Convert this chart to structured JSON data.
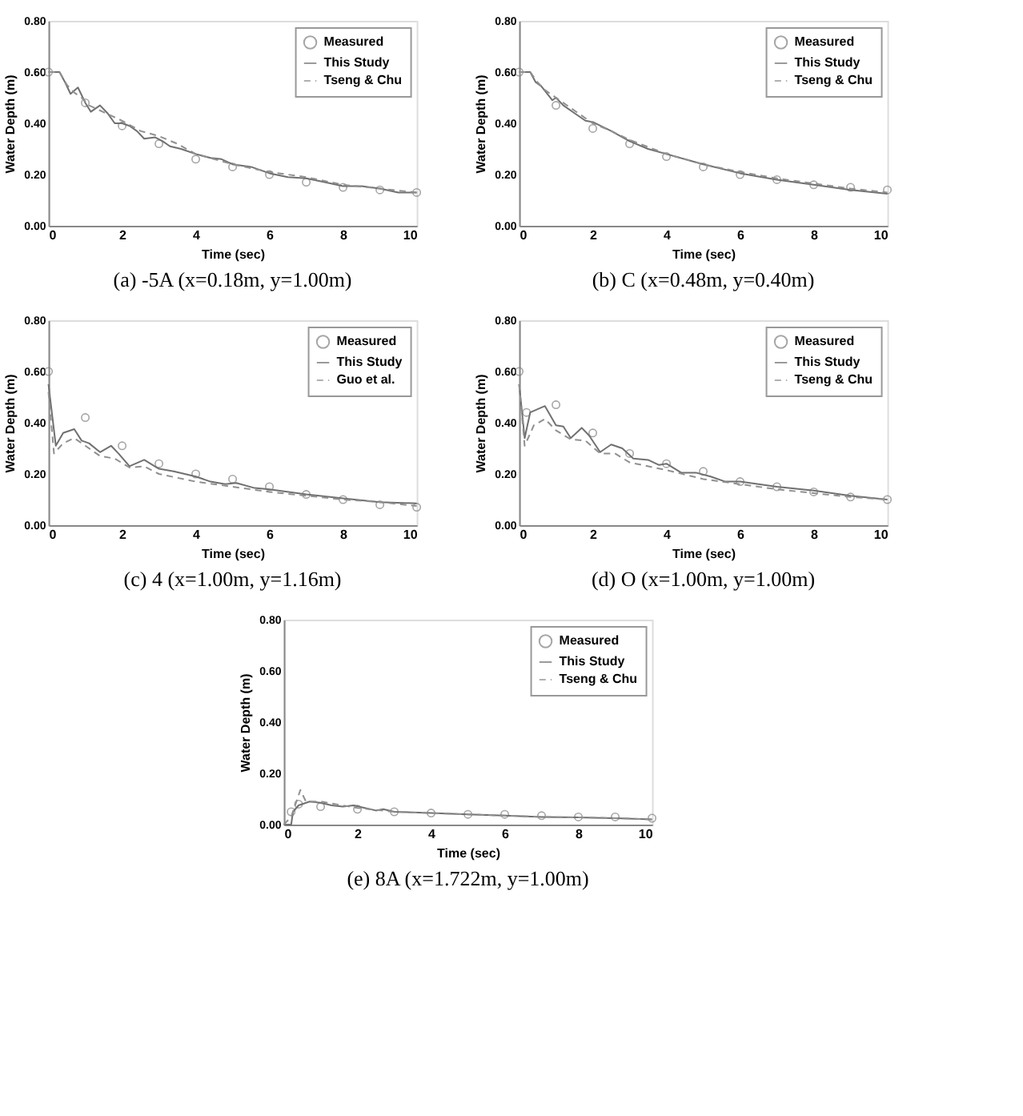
{
  "chart_data": [
    {
      "type": "line",
      "title": "(a)  -5A  (x=0.18m,  y=1.00m)",
      "xlabel": "Time (sec)",
      "ylabel": "Water Depth (m)",
      "xlim": [
        0,
        10
      ],
      "ylim": [
        0,
        0.8
      ],
      "xticks": [
        0,
        2,
        4,
        6,
        8,
        10
      ],
      "yticks": [
        {
          "value": 0,
          "label": "0.00"
        },
        {
          "value": 0.2,
          "label": "0.20"
        },
        {
          "value": 0.4,
          "label": "0.40"
        },
        {
          "value": 0.6,
          "label": "0.60"
        },
        {
          "value": 0.8,
          "label": "0.80"
        }
      ],
      "legend": "top right",
      "series": [
        {
          "name": "Measured",
          "type": "scatter",
          "marker": "circle",
          "color": "#808080",
          "x": [
            0,
            1,
            2,
            3,
            4,
            5,
            6,
            7,
            8,
            9,
            10
          ],
          "values": [
            0.6,
            0.48,
            0.39,
            0.32,
            0.26,
            0.23,
            0.2,
            0.17,
            0.15,
            0.14,
            0.13
          ]
        },
        {
          "name": "This Study",
          "line_style": "solid",
          "color": "#707070",
          "x": [
            0,
            0.3,
            0.45,
            0.6,
            0.8,
            1.0,
            1.15,
            1.4,
            1.6,
            1.8,
            2.0,
            2.2,
            2.4,
            2.6,
            2.9,
            3.1,
            3.3,
            3.6,
            4.0,
            4.4,
            4.7,
            5.0,
            5.5,
            6,
            6.5,
            7,
            7.5,
            8,
            8.5,
            9,
            9.5,
            10
          ],
          "values": [
            0.6,
            0.6,
            0.56,
            0.515,
            0.54,
            0.48,
            0.445,
            0.47,
            0.44,
            0.4,
            0.4,
            0.39,
            0.37,
            0.34,
            0.345,
            0.33,
            0.31,
            0.3,
            0.28,
            0.265,
            0.26,
            0.24,
            0.23,
            0.205,
            0.19,
            0.185,
            0.17,
            0.155,
            0.155,
            0.145,
            0.13,
            0.13
          ]
        },
        {
          "name": "Tseng & Chu",
          "line_style": "dashed",
          "color": "#909090",
          "x": [
            0,
            0.3,
            0.5,
            0.7,
            0.9,
            1.1,
            1.4,
            1.7,
            2.0,
            2.5,
            3,
            3.5,
            4,
            4.5,
            5,
            6,
            7,
            8,
            9,
            10
          ],
          "values": [
            0.6,
            0.6,
            0.55,
            0.52,
            0.5,
            0.47,
            0.45,
            0.43,
            0.41,
            0.37,
            0.35,
            0.32,
            0.28,
            0.26,
            0.24,
            0.21,
            0.19,
            0.16,
            0.145,
            0.13
          ]
        }
      ]
    },
    {
      "type": "line",
      "title": "(b)  C  (x=0.48m,  y=0.40m)",
      "xlabel": "Time (sec)",
      "ylabel": "Water Depth (m)",
      "xlim": [
        0,
        10
      ],
      "ylim": [
        0,
        0.8
      ],
      "xticks": [
        0,
        2,
        4,
        6,
        8,
        10
      ],
      "yticks": [
        {
          "value": 0,
          "label": "0.00"
        },
        {
          "value": 0.2,
          "label": "0.20"
        },
        {
          "value": 0.4,
          "label": "0.40"
        },
        {
          "value": 0.6,
          "label": "0.60"
        },
        {
          "value": 0.8,
          "label": "0.80"
        }
      ],
      "legend": "top right",
      "series": [
        {
          "name": "Measured",
          "type": "scatter",
          "marker": "circle",
          "color": "#808080",
          "x": [
            0,
            1,
            2,
            3,
            4,
            5,
            6,
            7,
            8,
            9,
            10
          ],
          "values": [
            0.6,
            0.47,
            0.38,
            0.32,
            0.27,
            0.23,
            0.2,
            0.18,
            0.16,
            0.15,
            0.14
          ]
        },
        {
          "name": "This Study",
          "line_style": "solid",
          "color": "#707070",
          "x": [
            0,
            0.3,
            0.45,
            0.6,
            0.9,
            1.0,
            1.2,
            1.5,
            1.8,
            2.0,
            2.5,
            3,
            3.5,
            4,
            5,
            6,
            7,
            8,
            9,
            10
          ],
          "values": [
            0.6,
            0.6,
            0.56,
            0.545,
            0.49,
            0.5,
            0.47,
            0.44,
            0.41,
            0.405,
            0.37,
            0.33,
            0.3,
            0.28,
            0.24,
            0.205,
            0.18,
            0.16,
            0.14,
            0.125
          ]
        },
        {
          "name": "Tseng & Chu",
          "line_style": "dashed",
          "color": "#909090",
          "x": [
            0,
            0.3,
            0.5,
            0.7,
            1,
            1.5,
            2,
            2.5,
            3,
            4,
            5,
            6,
            7,
            8,
            9,
            10
          ],
          "values": [
            0.6,
            0.6,
            0.56,
            0.53,
            0.5,
            0.45,
            0.4,
            0.37,
            0.335,
            0.28,
            0.24,
            0.21,
            0.185,
            0.165,
            0.145,
            0.13
          ]
        }
      ]
    },
    {
      "type": "line",
      "title": "(c)  4  (x=1.00m,  y=1.16m)",
      "xlabel": "Time (sec)",
      "ylabel": "Water Depth (m)",
      "xlim": [
        0,
        10
      ],
      "ylim": [
        0,
        0.8
      ],
      "xticks": [
        0,
        2,
        4,
        6,
        8,
        10
      ],
      "yticks": [
        {
          "value": 0,
          "label": "0.00"
        },
        {
          "value": 0.2,
          "label": "0.20"
        },
        {
          "value": 0.4,
          "label": "0.40"
        },
        {
          "value": 0.6,
          "label": "0.60"
        },
        {
          "value": 0.8,
          "label": "0.80"
        }
      ],
      "legend": "top right",
      "series": [
        {
          "name": "Measured",
          "type": "scatter",
          "marker": "circle",
          "color": "#808080",
          "x": [
            0,
            1,
            2,
            3,
            4,
            5,
            6,
            7,
            8,
            9,
            10
          ],
          "values": [
            0.6,
            0.42,
            0.31,
            0.24,
            0.2,
            0.18,
            0.15,
            0.12,
            0.1,
            0.08,
            0.07
          ]
        },
        {
          "name": "This Study",
          "line_style": "solid",
          "color": "#707070",
          "x": [
            0,
            0.2,
            0.4,
            0.7,
            0.9,
            1.1,
            1.4,
            1.7,
            1.9,
            2.2,
            2.6,
            3,
            3.4,
            4,
            4.4,
            4.8,
            5.1,
            5.6,
            6,
            7,
            8,
            9,
            10
          ],
          "values": [
            0.55,
            0.31,
            0.36,
            0.375,
            0.33,
            0.32,
            0.285,
            0.31,
            0.28,
            0.23,
            0.255,
            0.22,
            0.21,
            0.19,
            0.17,
            0.16,
            0.165,
            0.145,
            0.14,
            0.12,
            0.105,
            0.09,
            0.085
          ]
        },
        {
          "name": "Guo et al.",
          "line_style": "dashed",
          "color": "#909090",
          "x": [
            0,
            0.15,
            0.4,
            0.7,
            1,
            1.4,
            1.8,
            2.2,
            2.6,
            3,
            4,
            5,
            6,
            7,
            8,
            9,
            10
          ],
          "values": [
            0.52,
            0.28,
            0.32,
            0.34,
            0.31,
            0.27,
            0.26,
            0.225,
            0.23,
            0.2,
            0.17,
            0.15,
            0.13,
            0.115,
            0.1,
            0.09,
            0.075
          ]
        }
      ]
    },
    {
      "type": "line",
      "title": "(d)  O  (x=1.00m,  y=1.00m)",
      "xlabel": "Time (sec)",
      "ylabel": "Water Depth (m)",
      "xlim": [
        0,
        10
      ],
      "ylim": [
        0,
        0.8
      ],
      "xticks": [
        0,
        2,
        4,
        6,
        8,
        10
      ],
      "yticks": [
        {
          "value": 0,
          "label": "0.00"
        },
        {
          "value": 0.2,
          "label": "0.20"
        },
        {
          "value": 0.4,
          "label": "0.40"
        },
        {
          "value": 0.6,
          "label": "0.60"
        },
        {
          "value": 0.8,
          "label": "0.80"
        }
      ],
      "legend": "top right",
      "series": [
        {
          "name": "Measured",
          "type": "scatter",
          "marker": "circle",
          "color": "#808080",
          "x": [
            0,
            0.2,
            1,
            2,
            3,
            4,
            5,
            6,
            7,
            8,
            9,
            10
          ],
          "values": [
            0.6,
            0.44,
            0.47,
            0.36,
            0.28,
            0.24,
            0.21,
            0.17,
            0.15,
            0.13,
            0.11,
            0.1
          ]
        },
        {
          "name": "This Study",
          "line_style": "solid",
          "color": "#707070",
          "x": [
            0,
            0.15,
            0.3,
            0.7,
            1.0,
            1.2,
            1.4,
            1.7,
            1.9,
            2.2,
            2.5,
            2.8,
            3.1,
            3.5,
            3.8,
            4.0,
            4.4,
            4.8,
            5.2,
            5.6,
            6,
            7,
            8,
            9,
            10
          ],
          "values": [
            0.55,
            0.34,
            0.44,
            0.465,
            0.39,
            0.385,
            0.34,
            0.38,
            0.35,
            0.285,
            0.315,
            0.3,
            0.26,
            0.255,
            0.235,
            0.24,
            0.205,
            0.205,
            0.19,
            0.17,
            0.17,
            0.15,
            0.135,
            0.115,
            0.1
          ]
        },
        {
          "name": "Tseng & Chu",
          "line_style": "dashed",
          "color": "#909090",
          "x": [
            0,
            0.15,
            0.4,
            0.7,
            1,
            1.4,
            1.8,
            2.2,
            2.6,
            3,
            4,
            5,
            6,
            7,
            8,
            9,
            10
          ],
          "values": [
            0.55,
            0.31,
            0.39,
            0.415,
            0.37,
            0.335,
            0.33,
            0.28,
            0.28,
            0.245,
            0.215,
            0.18,
            0.16,
            0.14,
            0.125,
            0.11,
            0.1
          ]
        }
      ]
    },
    {
      "type": "line",
      "title": "(e)  8A  (x=1.722m,  y=1.00m)",
      "xlabel": "Time (sec)",
      "ylabel": "Water Depth (m)",
      "xlim": [
        0,
        10
      ],
      "ylim": [
        0,
        0.8
      ],
      "xticks": [
        0,
        2,
        4,
        6,
        8,
        10
      ],
      "yticks": [
        {
          "value": 0,
          "label": "0.00"
        },
        {
          "value": 0.2,
          "label": "0.20"
        },
        {
          "value": 0.4,
          "label": "0.40"
        },
        {
          "value": 0.6,
          "label": "0.60"
        },
        {
          "value": 0.8,
          "label": "0.80"
        }
      ],
      "legend": "top right",
      "series": [
        {
          "name": "Measured",
          "type": "scatter",
          "marker": "circle",
          "color": "#808080",
          "x": [
            0.2,
            0.4,
            1,
            2,
            3,
            4,
            5,
            6,
            7,
            8,
            9,
            10
          ],
          "values": [
            0.05,
            0.08,
            0.07,
            0.06,
            0.05,
            0.045,
            0.04,
            0.04,
            0.035,
            0.03,
            0.03,
            0.025
          ]
        },
        {
          "name": "This Study",
          "line_style": "solid",
          "color": "#707070",
          "x": [
            0,
            0.2,
            0.25,
            0.4,
            0.7,
            1,
            1.3,
            1.6,
            1.9,
            2.2,
            2.5,
            2.7,
            3,
            4,
            5,
            6,
            7,
            8,
            9,
            10
          ],
          "values": [
            0,
            0,
            0.05,
            0.075,
            0.09,
            0.085,
            0.075,
            0.07,
            0.075,
            0.065,
            0.055,
            0.06,
            0.05,
            0.045,
            0.04,
            0.035,
            0.03,
            0.028,
            0.025,
            0.02
          ]
        },
        {
          "name": "Tseng & Chu",
          "line_style": "dashed",
          "color": "#909090",
          "x": [
            0,
            0.2,
            0.45,
            0.6,
            1,
            2,
            3,
            4,
            5,
            6,
            7,
            8,
            9,
            10
          ],
          "values": [
            0,
            0.03,
            0.135,
            0.09,
            0.09,
            0.065,
            0.05,
            0.045,
            0.04,
            0.035,
            0.03,
            0.028,
            0.025,
            0.02
          ]
        }
      ]
    }
  ]
}
